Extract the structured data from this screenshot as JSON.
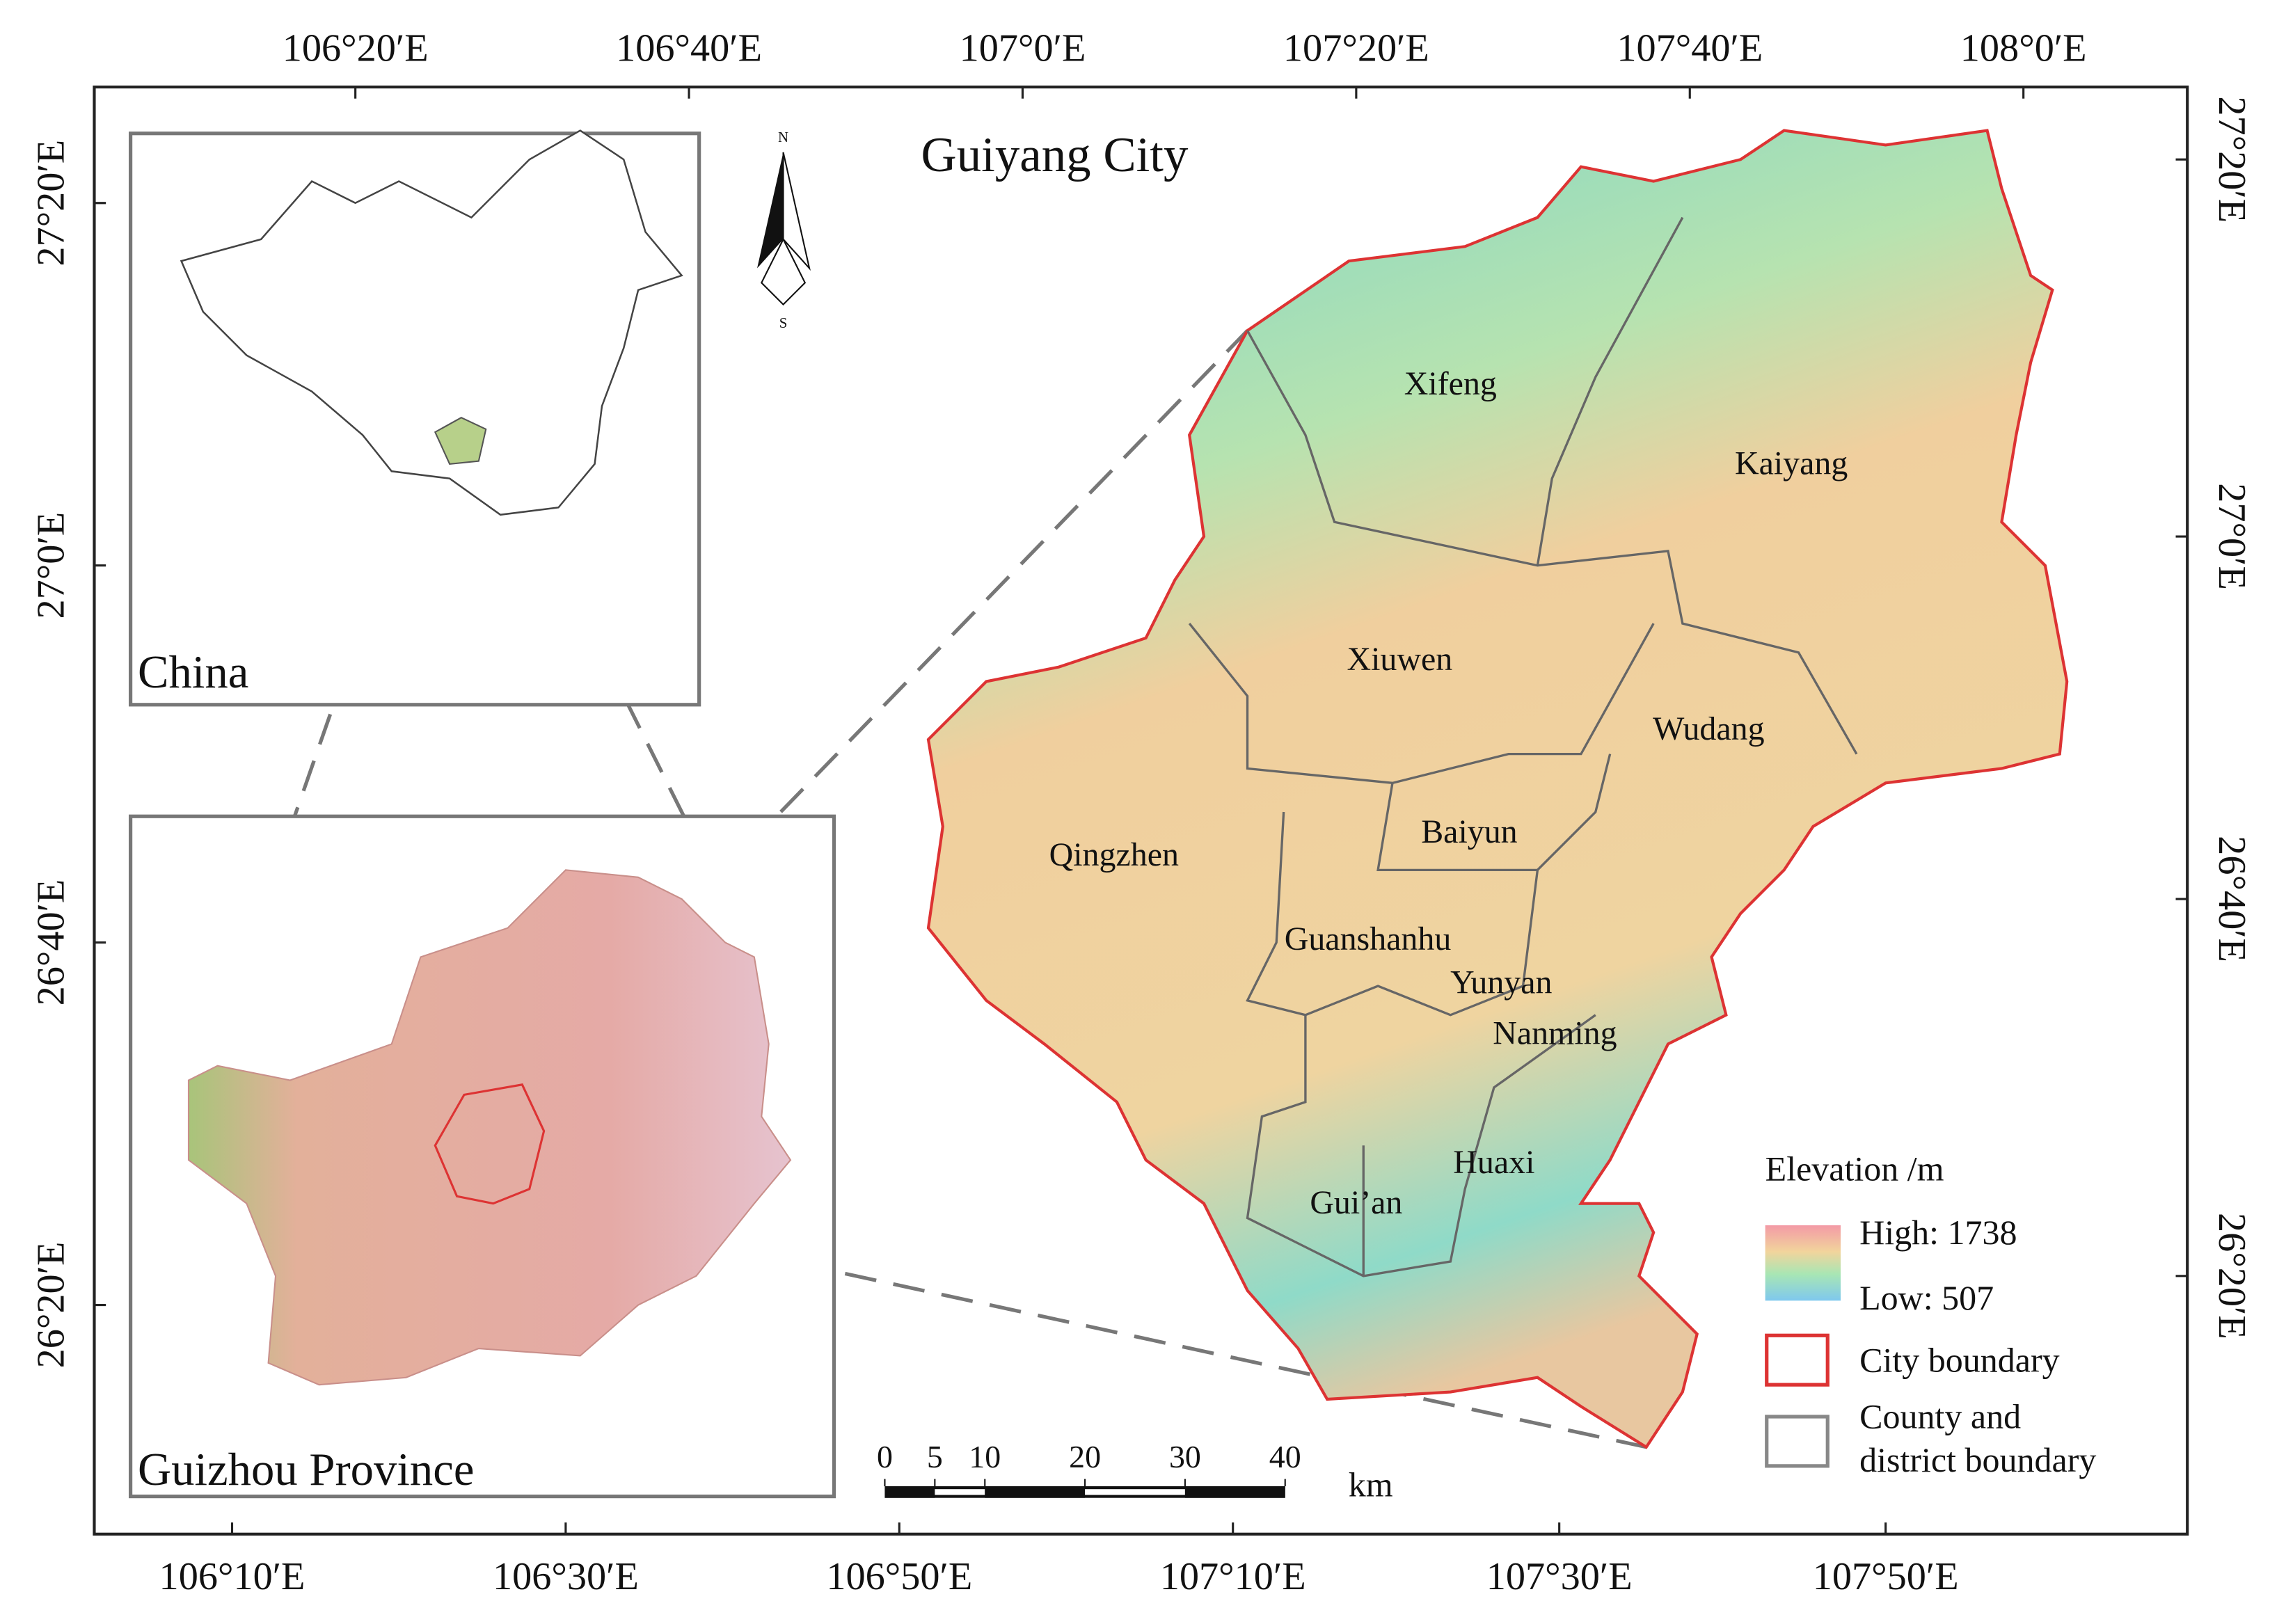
{
  "title": "Guiyang City",
  "north_arrow": {
    "north": "N",
    "south": "S"
  },
  "coordinates": {
    "top": [
      "106°20′E",
      "106°40′E",
      "107°0′E",
      "107°20′E",
      "107°40′E",
      "108°0′E"
    ],
    "bottom": [
      "106°10′E",
      "106°30′E",
      "106°50′E",
      "107°10′E",
      "107°30′E",
      "107°50′E"
    ],
    "left": [
      "27°20′E",
      "27°0′E",
      "26°40′E",
      "26°20′E"
    ],
    "right": [
      "27°20′E",
      "27°0′E",
      "26°40′E",
      "26°20′E"
    ]
  },
  "insets": {
    "china": "China",
    "guizhou": "Guizhou Province"
  },
  "districts": [
    "Xifeng",
    "Kaiyang",
    "Xiuwen",
    "Wudang",
    "Baiyun",
    "Qingzhen",
    "Guanshanhu",
    "Yunyan",
    "Nanming",
    "Huaxi",
    "Gui’an"
  ],
  "scale_bar": {
    "ticks": [
      0,
      5,
      10,
      20,
      30,
      40
    ],
    "unit": "km"
  },
  "legend": {
    "title": "Elevation /m",
    "high": "High: 1738",
    "low": "Low: 507",
    "city": "City boundary",
    "county": [
      "County and",
      "district boundary"
    ]
  }
}
